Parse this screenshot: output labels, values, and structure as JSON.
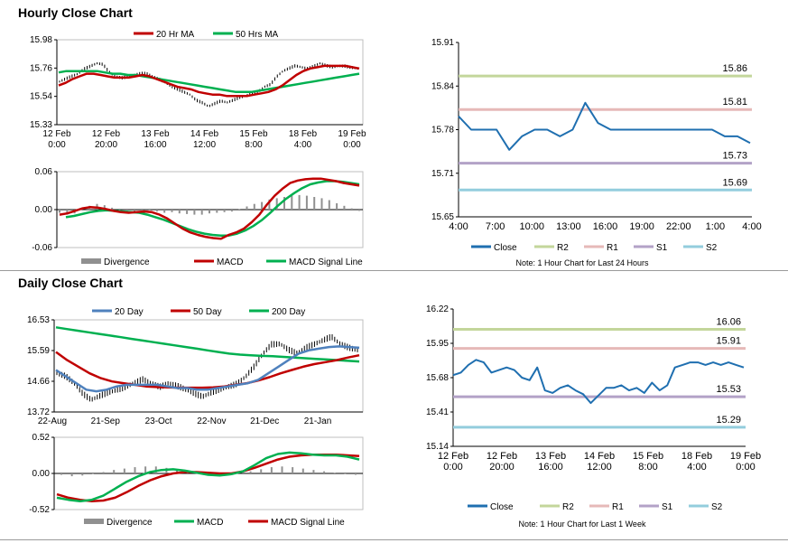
{
  "sections": {
    "hourly": "Hourly Close Chart",
    "daily": "Daily Close Chart"
  },
  "colors": {
    "black": "#000000",
    "red": "#c00000",
    "green": "#00b050",
    "blue": "#4f81bd",
    "close": "#1f6fb0",
    "r2": "#c3d69b",
    "r1": "#e6b9b8",
    "s1": "#b3a2c7",
    "s2": "#93cddd",
    "grey": "#909090"
  },
  "chart_data": [
    {
      "id": "hourly_price",
      "type": "line",
      "title": "",
      "legend": [
        "20 Hr MA",
        "50 Hrs MA"
      ],
      "ylim": [
        15.33,
        15.98
      ],
      "yticks": [
        "15.98",
        "15.76",
        "15.54",
        "15.33"
      ],
      "xticks": [
        [
          "12 Feb",
          "0:00"
        ],
        [
          "12 Feb",
          "20:00"
        ],
        [
          "13 Feb",
          "16:00"
        ],
        [
          "14 Feb",
          "12:00"
        ],
        [
          "15 Feb",
          "8:00"
        ],
        [
          "18 Feb",
          "4:00"
        ],
        [
          "19 Feb",
          "0:00"
        ]
      ],
      "series": [
        {
          "name": "Price",
          "values": [
            15.66,
            15.68,
            15.7,
            15.72,
            15.76,
            15.78,
            15.8,
            15.79,
            15.73,
            15.7,
            15.69,
            15.7,
            15.71,
            15.72,
            15.72,
            15.7,
            15.68,
            15.66,
            15.62,
            15.6,
            15.58,
            15.56,
            15.52,
            15.5,
            15.47,
            15.49,
            15.51,
            15.5,
            15.52,
            15.54,
            15.55,
            15.57,
            15.58,
            15.62,
            15.64,
            15.7,
            15.74,
            15.76,
            15.78,
            15.77,
            15.76,
            15.78,
            15.8,
            15.78,
            15.77,
            15.78,
            15.78,
            15.77,
            15.76
          ]
        },
        {
          "name": "20 Hr MA",
          "values": [
            15.63,
            15.65,
            15.68,
            15.7,
            15.72,
            15.72,
            15.71,
            15.7,
            15.69,
            15.69,
            15.69,
            15.7,
            15.71,
            15.7,
            15.68,
            15.66,
            15.64,
            15.62,
            15.61,
            15.6,
            15.58,
            15.57,
            15.56,
            15.56,
            15.55,
            15.55,
            15.55,
            15.55,
            15.56,
            15.57,
            15.58,
            15.6,
            15.63,
            15.67,
            15.71,
            15.74,
            15.76,
            15.77,
            15.78,
            15.78,
            15.78,
            15.78,
            15.77,
            15.76
          ]
        },
        {
          "name": "50 Hrs MA",
          "values": [
            15.73,
            15.74,
            15.74,
            15.74,
            15.74,
            15.74,
            15.73,
            15.72,
            15.72,
            15.71,
            15.71,
            15.7,
            15.69,
            15.68,
            15.67,
            15.66,
            15.65,
            15.64,
            15.63,
            15.62,
            15.61,
            15.6,
            15.59,
            15.58,
            15.58,
            15.58,
            15.59,
            15.6,
            15.61,
            15.62,
            15.63,
            15.64,
            15.65,
            15.66,
            15.67,
            15.68,
            15.69,
            15.7,
            15.71,
            15.72
          ]
        }
      ]
    },
    {
      "id": "hourly_macd",
      "type": "line",
      "legend": [
        "Divergence",
        "MACD",
        "MACD Signal Line"
      ],
      "ylim": [
        -0.06,
        0.06
      ],
      "yticks": [
        "0.06",
        "0.00",
        "-0.06"
      ],
      "series": [
        {
          "name": "Divergence",
          "values": [
            -0.005,
            -0.008,
            -0.006,
            0.002,
            0.006,
            0.009,
            0.007,
            0.003,
            -0.002,
            -0.004,
            -0.003,
            -0.002,
            -0.001,
            -0.003,
            -0.005,
            -0.004,
            -0.006,
            -0.007,
            -0.008,
            -0.008,
            -0.006,
            -0.005,
            -0.004,
            -0.003,
            0.001,
            0.005,
            0.009,
            0.012,
            0.016,
            0.018,
            0.02,
            0.022,
            0.023,
            0.022,
            0.02,
            0.018,
            0.015,
            0.01,
            0.006,
            0.002,
            -0.002
          ]
        },
        {
          "name": "MACD",
          "values": [
            -0.008,
            -0.006,
            -0.002,
            0.002,
            0.004,
            0.003,
            0.001,
            -0.002,
            -0.004,
            -0.005,
            -0.004,
            -0.003,
            -0.004,
            -0.008,
            -0.014,
            -0.022,
            -0.03,
            -0.036,
            -0.04,
            -0.043,
            -0.045,
            -0.046,
            -0.04,
            -0.036,
            -0.03,
            -0.02,
            -0.008,
            0.008,
            0.022,
            0.033,
            0.042,
            0.046,
            0.048,
            0.049,
            0.049,
            0.047,
            0.045,
            0.042,
            0.04,
            0.038
          ]
        },
        {
          "name": "MACD Signal Line",
          "values": [
            -0.012,
            -0.01,
            -0.007,
            -0.004,
            -0.002,
            -0.001,
            -0.002,
            -0.003,
            -0.004,
            -0.005,
            -0.008,
            -0.012,
            -0.016,
            -0.021,
            -0.026,
            -0.031,
            -0.035,
            -0.038,
            -0.04,
            -0.041,
            -0.041,
            -0.038,
            -0.033,
            -0.026,
            -0.017,
            -0.006,
            0.006,
            0.017,
            0.026,
            0.034,
            0.04,
            0.043,
            0.045,
            0.045,
            0.044,
            0.042,
            0.04
          ]
        }
      ]
    },
    {
      "id": "hourly_levels",
      "type": "line",
      "legend": [
        "Close",
        "R2",
        "R1",
        "S1",
        "S2"
      ],
      "ylim": [
        15.65,
        15.91
      ],
      "yticks": [
        "15.91",
        "15.84",
        "15.78",
        "15.71",
        "15.65"
      ],
      "xticks": [
        "4:00",
        "7:00",
        "10:00",
        "13:00",
        "16:00",
        "19:00",
        "22:00",
        "1:00",
        "4:00"
      ],
      "levels": {
        "R2": 15.86,
        "R1": 15.81,
        "S1": 15.73,
        "S2": 15.69
      },
      "level_labels": {
        "R2": "15.86",
        "R1": "15.81",
        "S1": "15.73",
        "S2": "15.69"
      },
      "series": [
        {
          "name": "Close",
          "values": [
            15.8,
            15.78,
            15.78,
            15.78,
            15.75,
            15.77,
            15.78,
            15.78,
            15.77,
            15.78,
            15.82,
            15.79,
            15.78,
            15.78,
            15.78,
            15.78,
            15.78,
            15.78,
            15.78,
            15.78,
            15.78,
            15.77,
            15.77,
            15.76
          ]
        }
      ],
      "note": "Note: 1 Hour Chart for Last 24 Hours"
    },
    {
      "id": "daily_price",
      "type": "line",
      "legend": [
        "20 Day",
        "50 Day",
        "200 Day"
      ],
      "ylim": [
        13.72,
        16.53
      ],
      "yticks": [
        "16.53",
        "15.59",
        "14.66",
        "13.72"
      ],
      "xticks": [
        "22-Aug",
        "21-Sep",
        "23-Oct",
        "22-Nov",
        "21-Dec",
        "21-Jan"
      ],
      "series": [
        {
          "name": "Price",
          "values": [
            14.9,
            14.8,
            14.6,
            14.3,
            14.1,
            14.2,
            14.3,
            14.4,
            14.5,
            14.6,
            14.7,
            14.6,
            14.5,
            14.6,
            14.5,
            14.4,
            14.3,
            14.2,
            14.3,
            14.4,
            14.5,
            14.6,
            14.8,
            15.1,
            15.5,
            15.8,
            15.8,
            15.6,
            15.5,
            15.7,
            15.8,
            15.9,
            16.0,
            15.8,
            15.7,
            15.6
          ]
        },
        {
          "name": "20 Day",
          "values": [
            15.0,
            14.8,
            14.6,
            14.4,
            14.35,
            14.4,
            14.5,
            14.55,
            14.55,
            14.55,
            14.55,
            14.5,
            14.45,
            14.45,
            14.4,
            14.4,
            14.45,
            14.5,
            14.55,
            14.6,
            14.7,
            14.9,
            15.1,
            15.3,
            15.5,
            15.6,
            15.65,
            15.7,
            15.72,
            15.7,
            15.68
          ]
        },
        {
          "name": "50 Day",
          "values": [
            15.55,
            15.3,
            15.1,
            14.9,
            14.75,
            14.65,
            14.6,
            14.55,
            14.5,
            14.48,
            14.47,
            14.46,
            14.46,
            14.46,
            14.47,
            14.5,
            14.55,
            14.6,
            14.68,
            14.78,
            14.9,
            15.0,
            15.1,
            15.18,
            15.24,
            15.3,
            15.38,
            15.45
          ]
        },
        {
          "name": "200 Day",
          "values": [
            16.3,
            16.25,
            16.2,
            16.15,
            16.1,
            16.05,
            16.0,
            15.95,
            15.9,
            15.85,
            15.8,
            15.75,
            15.7,
            15.65,
            15.6,
            15.55,
            15.5,
            15.47,
            15.45,
            15.43,
            15.42,
            15.4,
            15.38,
            15.36,
            15.34,
            15.32,
            15.3,
            15.28,
            15.26
          ]
        }
      ]
    },
    {
      "id": "daily_macd",
      "type": "line",
      "legend": [
        "Divergence",
        "MACD",
        "MACD Signal Line"
      ],
      "ylim": [
        -0.52,
        0.52
      ],
      "yticks": [
        "0.52",
        "0.00",
        "-0.52"
      ],
      "series": [
        {
          "name": "Divergence",
          "values": [
            -0.02,
            -0.04,
            -0.03,
            -0.01,
            0.02,
            0.05,
            0.07,
            0.09,
            0.1,
            0.1,
            0.08,
            0.05,
            0.02,
            0.0,
            -0.02,
            -0.03,
            -0.02,
            0.0,
            0.03,
            0.06,
            0.09,
            0.1,
            0.09,
            0.07,
            0.05,
            0.03,
            0.01,
            -0.01,
            -0.02
          ]
        },
        {
          "name": "MACD",
          "values": [
            -0.35,
            -0.38,
            -0.4,
            -0.38,
            -0.32,
            -0.22,
            -0.12,
            -0.04,
            0.02,
            0.05,
            0.06,
            0.04,
            0.01,
            -0.02,
            -0.03,
            -0.01,
            0.03,
            0.12,
            0.22,
            0.28,
            0.3,
            0.29,
            0.27,
            0.26,
            0.26,
            0.24,
            0.2
          ]
        },
        {
          "name": "MACD Signal Line",
          "values": [
            -0.3,
            -0.35,
            -0.38,
            -0.4,
            -0.39,
            -0.35,
            -0.27,
            -0.18,
            -0.1,
            -0.04,
            0.0,
            0.02,
            0.02,
            0.01,
            0.0,
            0.0,
            0.03,
            0.08,
            0.14,
            0.2,
            0.24,
            0.26,
            0.27,
            0.27,
            0.27,
            0.26,
            0.25
          ]
        }
      ]
    },
    {
      "id": "daily_levels",
      "type": "line",
      "legend": [
        "Close",
        "R2",
        "R1",
        "S1",
        "S2"
      ],
      "ylim": [
        15.14,
        16.22
      ],
      "yticks": [
        "16.22",
        "15.95",
        "15.68",
        "15.41",
        "15.14"
      ],
      "xticks": [
        [
          "12 Feb",
          "0:00"
        ],
        [
          "12 Feb",
          "20:00"
        ],
        [
          "13 Feb",
          "16:00"
        ],
        [
          "14 Feb",
          "12:00"
        ],
        [
          "15 Feb",
          "8:00"
        ],
        [
          "18 Feb",
          "4:00"
        ],
        [
          "19 Feb",
          "0:00"
        ]
      ],
      "levels": {
        "R2": 16.06,
        "R1": 15.91,
        "S1": 15.53,
        "S2": 15.29
      },
      "level_labels": {
        "R2": "16.06",
        "R1": "15.91",
        "S1": "15.53",
        "S2": "15.29"
      },
      "series": [
        {
          "name": "Close",
          "values": [
            15.7,
            15.72,
            15.78,
            15.82,
            15.8,
            15.72,
            15.74,
            15.76,
            15.74,
            15.68,
            15.66,
            15.76,
            15.58,
            15.56,
            15.6,
            15.62,
            15.58,
            15.55,
            15.48,
            15.54,
            15.6,
            15.6,
            15.62,
            15.58,
            15.6,
            15.56,
            15.64,
            15.58,
            15.62,
            15.76,
            15.78,
            15.8,
            15.8,
            15.78,
            15.8,
            15.78,
            15.8,
            15.78,
            15.76
          ]
        }
      ],
      "note": "Note: 1 Hour Chart for Last 1 Week"
    }
  ]
}
